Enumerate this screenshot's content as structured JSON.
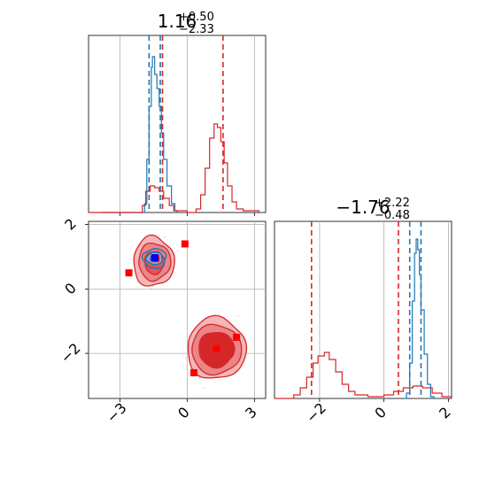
{
  "colors": {
    "blue": "#1f77b4",
    "red": "#d62728",
    "grid": "#b0b0b0",
    "square_red": "#ff0000",
    "square_blue": "#0000ff"
  },
  "chart_data": [
    {
      "panel": "top-left",
      "type": "histogram",
      "title_main": "1.16",
      "title_sup": "+0.50",
      "title_sub": "−2.33",
      "xlim": [
        -4.4,
        3.5
      ],
      "x_ticks": [
        -3,
        0,
        3
      ],
      "grid": true,
      "series": [
        {
          "color": "blue",
          "lines": [
            -1.7,
            -1.2
          ],
          "points": [
            [
              -3.8,
              0
            ],
            [
              -2.0,
              0
            ],
            [
              -1.9,
              0.05
            ],
            [
              -1.8,
              0.3
            ],
            [
              -1.7,
              0.6
            ],
            [
              -1.6,
              0.82
            ],
            [
              -1.55,
              0.88
            ],
            [
              -1.45,
              0.78
            ],
            [
              -1.35,
              0.7
            ],
            [
              -1.25,
              0.6
            ],
            [
              -1.15,
              0.45
            ],
            [
              -1.05,
              0.3
            ],
            [
              -0.9,
              0.15
            ],
            [
              -0.7,
              0.05
            ],
            [
              -0.55,
              0.01
            ],
            [
              -0.45,
              0
            ]
          ]
        },
        {
          "color": "red",
          "lines": [
            -1.1,
            1.6
          ],
          "points": [
            [
              -4.4,
              0
            ],
            [
              -2.2,
              0
            ],
            [
              -2.0,
              0.04
            ],
            [
              -1.85,
              0.12
            ],
            [
              -1.65,
              0.15
            ],
            [
              -1.45,
              0.14
            ],
            [
              -1.25,
              0.12
            ],
            [
              -1.05,
              0.08
            ],
            [
              -0.8,
              0.04
            ],
            [
              -0.6,
              0.01
            ],
            [
              0,
              0
            ],
            [
              0.4,
              0.02
            ],
            [
              0.6,
              0.1
            ],
            [
              0.8,
              0.25
            ],
            [
              1.0,
              0.42
            ],
            [
              1.2,
              0.5
            ],
            [
              1.35,
              0.48
            ],
            [
              1.5,
              0.4
            ],
            [
              1.65,
              0.28
            ],
            [
              1.8,
              0.15
            ],
            [
              2.0,
              0.06
            ],
            [
              2.2,
              0.02
            ],
            [
              2.5,
              0.01
            ],
            [
              3.2,
              0
            ]
          ]
        }
      ]
    },
    {
      "panel": "bottom-left",
      "type": "scatter-contour",
      "xlim": [
        -4.4,
        3.5
      ],
      "ylim": [
        -3.4,
        2.1
      ],
      "x_ticks": [
        -3,
        0,
        3
      ],
      "y_ticks": [
        -2,
        0,
        2
      ],
      "grid": true,
      "red_squares": [
        [
          -0.1,
          1.4
        ],
        [
          -2.6,
          0.5
        ],
        [
          -1.4,
          0.95
        ],
        [
          0.3,
          -2.6
        ],
        [
          1.3,
          -1.85
        ],
        [
          2.2,
          -1.5
        ]
      ],
      "blue_squares": [
        [
          -1.45,
          0.97
        ]
      ],
      "contour_blue_center": [
        -1.45,
        0.95
      ],
      "contour_red_upper_center": [
        -1.5,
        0.85
      ],
      "contour_red_lower_center": [
        1.3,
        -1.85
      ]
    },
    {
      "panel": "bottom-right",
      "type": "histogram",
      "title_main": "−1.76",
      "title_sup": "+2.22",
      "title_sub": "−0.48",
      "xlim": [
        -3.4,
        2.1
      ],
      "x_ticks": [
        -2,
        0,
        2
      ],
      "grid": true,
      "series": [
        {
          "color": "blue",
          "lines": [
            0.8,
            1.15
          ],
          "points": [
            [
              0.6,
              0
            ],
            [
              0.7,
              0.03
            ],
            [
              0.8,
              0.2
            ],
            [
              0.88,
              0.55
            ],
            [
              0.95,
              0.82
            ],
            [
              1.0,
              0.9
            ],
            [
              1.05,
              0.84
            ],
            [
              1.1,
              0.7
            ],
            [
              1.15,
              0.5
            ],
            [
              1.25,
              0.25
            ],
            [
              1.35,
              0.08
            ],
            [
              1.45,
              0.01
            ],
            [
              1.55,
              0
            ]
          ]
        },
        {
          "color": "red",
          "lines": [
            -2.25,
            0.45
          ],
          "points": [
            [
              -3.4,
              0
            ],
            [
              -2.8,
              0.02
            ],
            [
              -2.6,
              0.06
            ],
            [
              -2.4,
              0.12
            ],
            [
              -2.2,
              0.2
            ],
            [
              -2.05,
              0.24
            ],
            [
              -1.85,
              0.26
            ],
            [
              -1.7,
              0.22
            ],
            [
              -1.5,
              0.15
            ],
            [
              -1.3,
              0.08
            ],
            [
              -1.1,
              0.04
            ],
            [
              -0.9,
              0.02
            ],
            [
              -0.5,
              0.01
            ],
            [
              0.0,
              0.02
            ],
            [
              0.3,
              0.04
            ],
            [
              0.6,
              0.06
            ],
            [
              0.9,
              0.07
            ],
            [
              1.2,
              0.06
            ],
            [
              1.5,
              0.03
            ],
            [
              1.8,
              0.01
            ],
            [
              2.1,
              0
            ]
          ]
        }
      ]
    }
  ]
}
